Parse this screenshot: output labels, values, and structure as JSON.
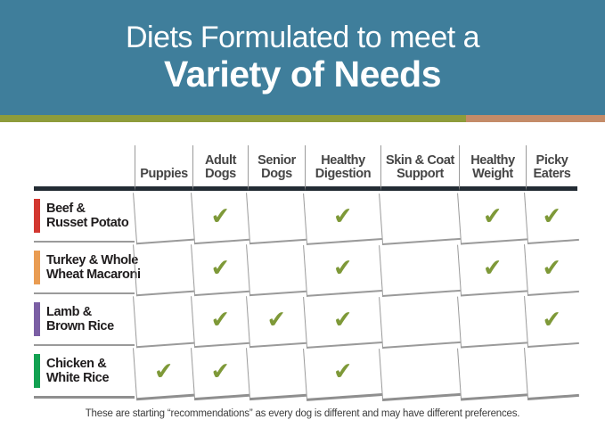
{
  "hero": {
    "title_line1": "Diets Formulated to meet a",
    "title_line2": "Variety of Needs"
  },
  "colors": {
    "hero_bg": "#3F7E9B",
    "stripe_left": "#8E9C3B",
    "stripe_right": "#C48B68",
    "header_rule": "#232C34",
    "grid_line": "#9A9A9A",
    "check": "#7E9938"
  },
  "table": {
    "columns": [
      "Puppies",
      "Adult Dogs",
      "Senior Dogs",
      "Healthy Digestion",
      "Skin & Coat Support",
      "Healthy Weight",
      "Picky Eaters"
    ],
    "check_glyph": "✔",
    "rows": [
      {
        "line1": "Beef &",
        "line2": "Russet Potato",
        "accent": "#D23730",
        "cells": [
          "",
          "✔",
          "",
          "✔",
          "",
          "✔",
          "✔"
        ]
      },
      {
        "line1": "Turkey & Whole",
        "line2": "Wheat Macaroni",
        "accent": "#E99C52",
        "cells": [
          "",
          "✔",
          "",
          "✔",
          "",
          "✔",
          "✔"
        ]
      },
      {
        "line1": "Lamb &",
        "line2": "Brown Rice",
        "accent": "#7B5FA4",
        "cells": [
          "",
          "✔",
          "✔",
          "✔",
          "",
          "",
          "✔"
        ]
      },
      {
        "line1": "Chicken &",
        "line2": "White Rice",
        "accent": "#12A151",
        "cells": [
          "✔",
          "✔",
          "",
          "✔",
          "",
          "",
          ""
        ]
      }
    ]
  },
  "footer": {
    "text": "These are starting “recommendations” as every dog is different and may have different preferences."
  },
  "chart_data": {
    "type": "table",
    "title": "Diets Formulated to meet a Variety of Needs",
    "columns": [
      "Puppies",
      "Adult Dogs",
      "Senior Dogs",
      "Healthy Digestion",
      "Skin & Coat Support",
      "Healthy Weight",
      "Picky Eaters"
    ],
    "rows": [
      {
        "diet": "Beef & Russet Potato",
        "checks": [
          false,
          true,
          false,
          true,
          false,
          true,
          true
        ]
      },
      {
        "diet": "Turkey & Whole Wheat Macaroni",
        "checks": [
          false,
          true,
          false,
          true,
          false,
          true,
          true
        ]
      },
      {
        "diet": "Lamb & Brown Rice",
        "checks": [
          false,
          true,
          true,
          true,
          false,
          false,
          true
        ]
      },
      {
        "diet": "Chicken & White Rice",
        "checks": [
          true,
          true,
          false,
          true,
          false,
          false,
          false
        ]
      }
    ],
    "note": "These are starting “recommendations” as every dog is different and may have different preferences."
  }
}
